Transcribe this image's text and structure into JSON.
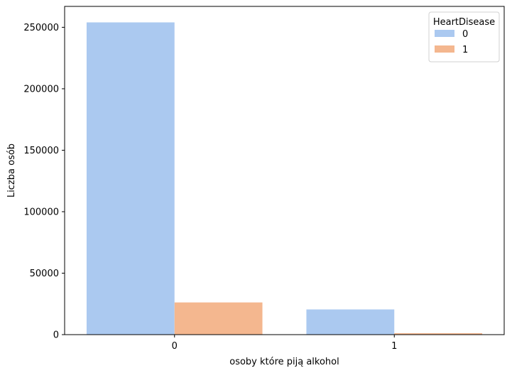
{
  "chart_data": {
    "type": "bar",
    "title": "",
    "xlabel": "osoby które piją alkohol",
    "ylabel": "Liczba osób",
    "categories": [
      "0",
      "1"
    ],
    "series": [
      {
        "name": "0",
        "color": "#abc9f0",
        "values": [
          254000,
          20500
        ]
      },
      {
        "name": "1",
        "color": "#f4b78f",
        "values": [
          26200,
          1200
        ]
      }
    ],
    "ylim": [
      0,
      267000
    ],
    "yticks": [
      0,
      50000,
      100000,
      150000,
      200000,
      250000
    ],
    "ytick_labels": [
      "0",
      "50000",
      "100000",
      "150000",
      "200000",
      "250000"
    ],
    "grid": false,
    "legend": {
      "title": "HeartDisease",
      "position": "top-right"
    }
  }
}
